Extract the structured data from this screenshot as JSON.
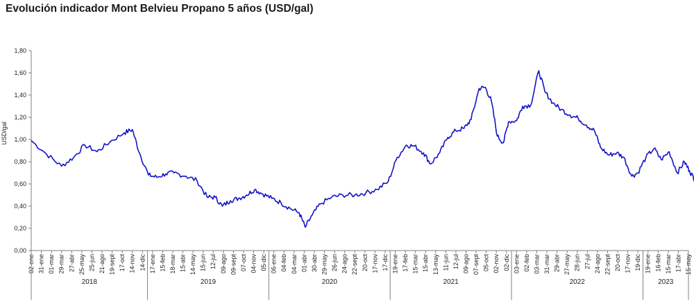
{
  "chart_data": {
    "type": "line",
    "title": "Evolución indicador Mont Belvieu Propano 5 años (USD/gal)",
    "ylabel": "USD/gal",
    "ylim": [
      0,
      1.8
    ],
    "yticks": [
      "0,00",
      "0,20",
      "0,40",
      "0,60",
      "0,80",
      "1,00",
      "1,20",
      "1,40",
      "1,60",
      "1,80"
    ],
    "line_color": "#1212c8",
    "grid": false,
    "x_tick_labels": [
      "02-ene",
      "31-ene",
      "01-mar",
      "29-mar",
      "27-abr",
      "25-may",
      "25-jun",
      "21-ago",
      "19-sept",
      "17-oct",
      "14-nov",
      "14-dic",
      "17-ene",
      "15-feb",
      "18-mar",
      "15-abr",
      "14-may",
      "15-jun",
      "12-jul",
      "09-ago",
      "09-sept",
      "07-oct",
      "04-nov",
      "05-dic",
      "06-ene",
      "04-feb",
      "04-mar",
      "01-abr",
      "30-abr",
      "29-may",
      "26-jun",
      "24-ago",
      "22-sept",
      "20-oct",
      "17-nov",
      "17-dic",
      "19-ene",
      "17-feb",
      "15-mar",
      "15-abr",
      "13-may",
      "11-jun",
      "12-jul",
      "09-ago",
      "07-sept",
      "05-oct",
      "02-nov",
      "02-dic",
      "03-ene",
      "02-feb",
      "03-mar",
      "31-mar",
      "29-abr",
      "27-may",
      "28-jun",
      "27-jul",
      "24-ago",
      "22-sept",
      "20-oct",
      "17-nov",
      "19-dic",
      "19-ene",
      "16-feb",
      "15-mar",
      "17-abr",
      "15-may"
    ],
    "years": [
      "2018",
      "2019",
      "2020",
      "2021",
      "2022",
      "2023"
    ],
    "year_tick_counts": [
      12,
      12,
      12,
      12,
      13,
      5
    ],
    "series": [
      {
        "name": "",
        "anchors": [
          [
            0,
            0.99
          ],
          [
            1.5,
            0.87
          ],
          [
            3,
            0.76
          ],
          [
            4.2,
            0.84
          ],
          [
            5.3,
            0.95
          ],
          [
            6.5,
            0.89
          ],
          [
            7.8,
            0.98
          ],
          [
            9.2,
            1.06
          ],
          [
            10,
            1.09
          ],
          [
            10.7,
            0.88
          ],
          [
            11.6,
            0.68
          ],
          [
            12.4,
            0.66
          ],
          [
            13.3,
            0.69
          ],
          [
            14.1,
            0.7
          ],
          [
            15.3,
            0.67
          ],
          [
            16.4,
            0.63
          ],
          [
            17.4,
            0.48
          ],
          [
            18.2,
            0.48
          ],
          [
            18.9,
            0.4
          ],
          [
            19.7,
            0.45
          ],
          [
            20.5,
            0.47
          ],
          [
            21.3,
            0.5
          ],
          [
            22.1,
            0.55
          ],
          [
            22.9,
            0.51
          ],
          [
            23.8,
            0.47
          ],
          [
            24.7,
            0.43
          ],
          [
            25.6,
            0.38
          ],
          [
            26.5,
            0.34
          ],
          [
            27.1,
            0.21
          ],
          [
            27.8,
            0.32
          ],
          [
            28.6,
            0.42
          ],
          [
            29.7,
            0.48
          ],
          [
            30.8,
            0.5
          ],
          [
            32,
            0.5
          ],
          [
            33.1,
            0.52
          ],
          [
            34.2,
            0.55
          ],
          [
            35.3,
            0.62
          ],
          [
            36.2,
            0.84
          ],
          [
            37.1,
            0.95
          ],
          [
            37.9,
            0.94
          ],
          [
            38.8,
            0.88
          ],
          [
            39.5,
            0.78
          ],
          [
            40.4,
            0.88
          ],
          [
            41.2,
            1.02
          ],
          [
            42,
            1.08
          ],
          [
            42.8,
            1.1
          ],
          [
            43.5,
            1.18
          ],
          [
            44.3,
            1.46
          ],
          [
            44.9,
            1.47
          ],
          [
            45.5,
            1.35
          ],
          [
            46.1,
            1.03
          ],
          [
            46.7,
            0.97
          ],
          [
            47.2,
            1.16
          ],
          [
            48,
            1.17
          ],
          [
            48.6,
            1.3
          ],
          [
            49.4,
            1.31
          ],
          [
            50.2,
            1.62
          ],
          [
            50.8,
            1.43
          ],
          [
            51.6,
            1.33
          ],
          [
            52.4,
            1.27
          ],
          [
            53.3,
            1.22
          ],
          [
            54.1,
            1.19
          ],
          [
            54.9,
            1.13
          ],
          [
            55.7,
            1.08
          ],
          [
            56.3,
            0.93
          ],
          [
            57.1,
            0.86
          ],
          [
            57.9,
            0.88
          ],
          [
            58.6,
            0.84
          ],
          [
            59.4,
            0.67
          ],
          [
            60,
            0.7
          ],
          [
            60.8,
            0.84
          ],
          [
            61.6,
            0.92
          ],
          [
            62.3,
            0.82
          ],
          [
            63.1,
            0.89
          ],
          [
            63.9,
            0.7
          ],
          [
            64.6,
            0.8
          ],
          [
            65.1,
            0.72
          ],
          [
            65.6,
            0.64
          ],
          [
            66,
            0.64
          ]
        ]
      }
    ]
  }
}
